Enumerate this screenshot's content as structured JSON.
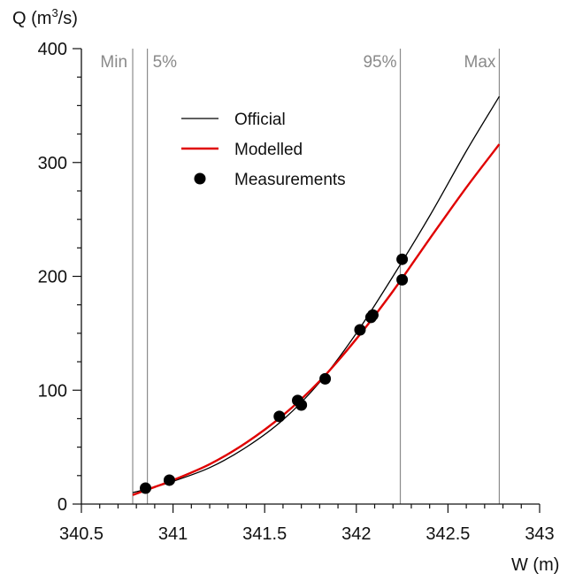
{
  "chart_data": {
    "type": "line",
    "xlabel": "W (m)",
    "ylabel": "Q (m",
    "ylabel_sup": "3",
    "ylabel_tail": "/s)",
    "xlim": [
      340.5,
      343
    ],
    "ylim": [
      0,
      400
    ],
    "xticks": [
      340.5,
      341,
      341.5,
      342,
      342.5,
      343
    ],
    "xtick_labels": [
      "340.5",
      "341",
      "341.5",
      "342",
      "342.5",
      "343"
    ],
    "yticks": [
      0,
      100,
      200,
      300,
      400
    ],
    "ytick_labels": [
      "0",
      "100",
      "200",
      "300",
      "400"
    ],
    "grid": false,
    "legend_position": "top-center",
    "reference_lines": [
      {
        "label": "Min",
        "x": 340.78
      },
      {
        "label": "5%",
        "x": 340.86
      },
      {
        "label": "95%",
        "x": 342.24
      },
      {
        "label": "Max",
        "x": 342.78
      }
    ],
    "series": [
      {
        "name": "Official",
        "kind": "line",
        "color": "#000000",
        "x": [
          340.78,
          340.9,
          341.0,
          341.2,
          341.4,
          341.6,
          341.8,
          342.0,
          342.2,
          342.4,
          342.6,
          342.78
        ],
        "y": [
          10,
          15,
          20,
          32,
          50,
          74,
          107,
          150,
          200,
          253,
          310,
          358
        ]
      },
      {
        "name": "Modelled",
        "kind": "line",
        "color": "#e00000",
        "x": [
          340.78,
          340.9,
          341.0,
          341.2,
          341.4,
          341.6,
          341.8,
          342.0,
          342.2,
          342.4,
          342.6,
          342.78
        ],
        "y": [
          8,
          15,
          21,
          35,
          54,
          78,
          108,
          145,
          187,
          233,
          278,
          316
        ]
      },
      {
        "name": "Measurements",
        "kind": "scatter",
        "color": "#000000",
        "x": [
          340.85,
          340.98,
          341.58,
          341.68,
          341.7,
          341.83,
          342.02,
          342.08,
          342.09,
          342.25,
          342.25
        ],
        "y": [
          14,
          21,
          77,
          91,
          87,
          110,
          153,
          164,
          166,
          197,
          215
        ]
      }
    ]
  }
}
